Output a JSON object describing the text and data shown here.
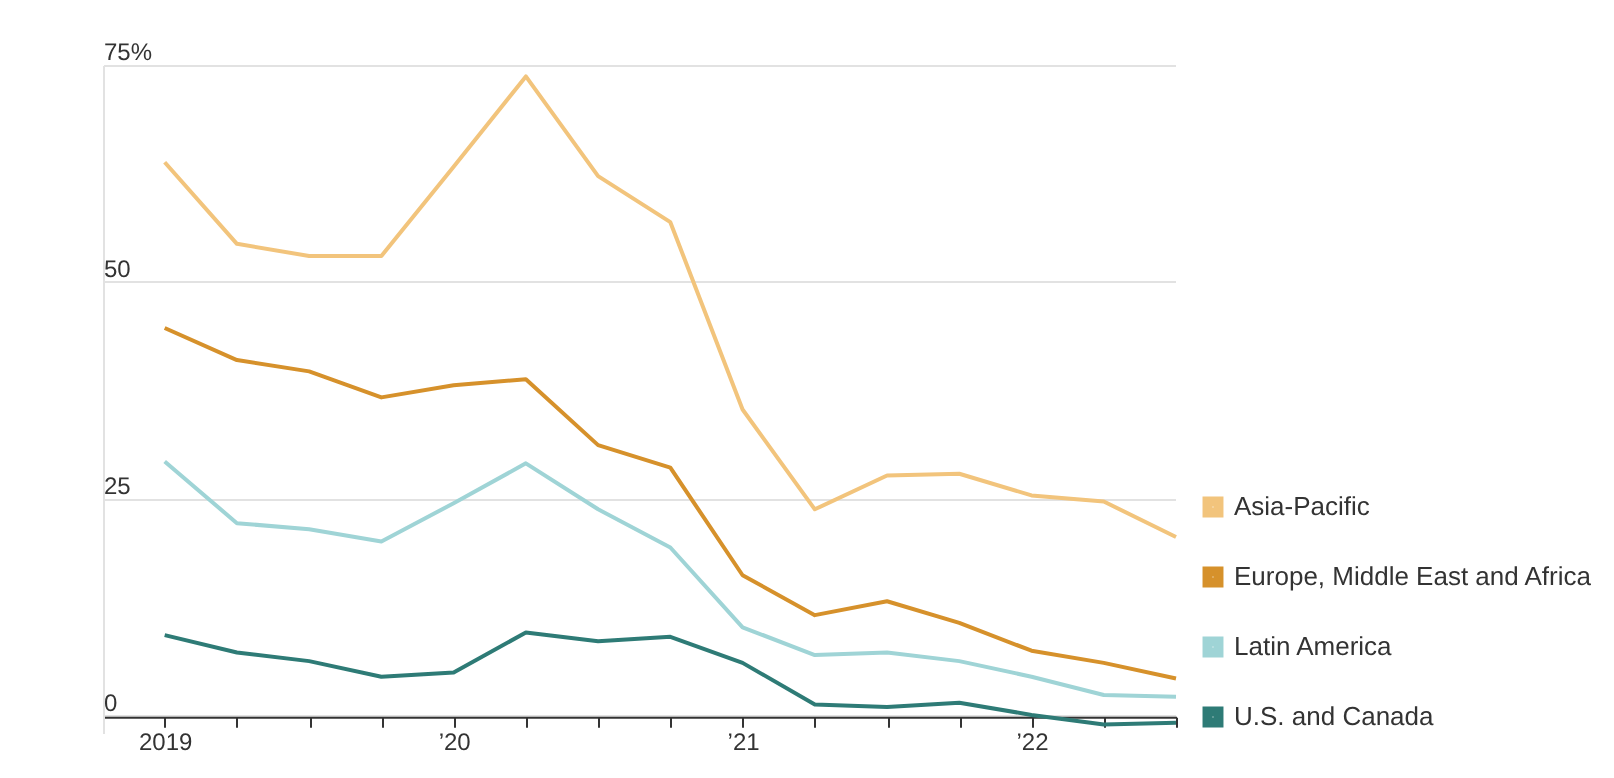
{
  "chart_data": {
    "type": "line",
    "x": [
      2019,
      2019.25,
      2019.5,
      2019.75,
      2020,
      2020.25,
      2020.5,
      2020.75,
      2021,
      2021.25,
      2021.5,
      2021.75,
      2022,
      2022.25,
      2022.5
    ],
    "series": [
      {
        "name": "Asia-Pacific",
        "color": "#f2c47c",
        "values": [
          63.9,
          54.5,
          53.1,
          53.1,
          63.4,
          73.8,
          62.3,
          57,
          35.4,
          23.9,
          27.8,
          28,
          25.5,
          24.8,
          20.7
        ]
      },
      {
        "name": "Europe, Middle East and Africa",
        "color": "#d6912b",
        "values": [
          44.8,
          41.1,
          39.8,
          36.8,
          38.2,
          38.9,
          31.3,
          28.7,
          16.3,
          11.7,
          13.3,
          10.8,
          7.6,
          6.2,
          4.4
        ]
      },
      {
        "name": "Latin America",
        "color": "#9fd4d6",
        "values": [
          29.4,
          22.3,
          21.6,
          20.2,
          24.6,
          29.2,
          23.9,
          19.5,
          10.3,
          7.1,
          7.4,
          6.4,
          4.6,
          2.5,
          2.3
        ]
      },
      {
        "name": "U.S. and Canada",
        "color": "#2e7b76",
        "values": [
          9.4,
          7.4,
          6.4,
          4.6,
          5.1,
          9.7,
          8.7,
          9.2,
          6.2,
          1.4,
          1.1,
          1.6,
          0.2,
          -0.9,
          -0.7
        ]
      }
    ],
    "xlim": [
      2018.79,
      2022.5
    ],
    "xticks": [
      2019,
      {
        "value": 2019.25,
        "label": null
      },
      {
        "value": 2019.5,
        "label": null
      },
      {
        "value": 2019.75,
        "label": null
      },
      {
        "value": 2020,
        "label": "’20"
      },
      {
        "value": 2020.25,
        "label": null
      },
      {
        "value": 2020.5,
        "label": null
      },
      {
        "value": 2020.75,
        "label": null
      },
      {
        "value": 2021,
        "label": "’21"
      },
      {
        "value": 2021.25,
        "label": null
      },
      {
        "value": 2021.5,
        "label": null
      },
      {
        "value": 2021.75,
        "label": null
      },
      {
        "value": 2022,
        "label": "’22"
      },
      {
        "value": 2022.25,
        "label": null
      },
      {
        "value": 2022.5,
        "label": null
      }
    ],
    "ylim": [
      -2,
      75
    ],
    "yticks": [
      0,
      25,
      50,
      {
        "value": 75,
        "label": "75%"
      }
    ],
    "grid": "y",
    "legend": "right",
    "line_style": "solid",
    "marker": "none"
  }
}
